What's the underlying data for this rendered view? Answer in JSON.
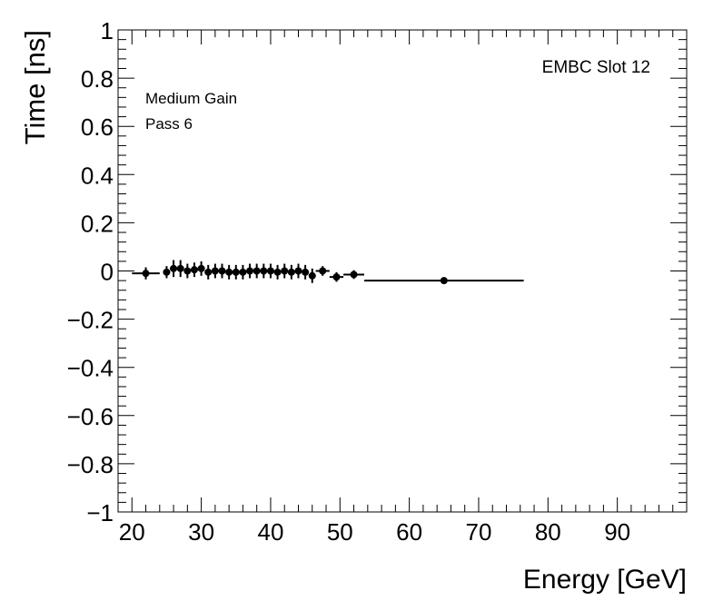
{
  "chart_data": {
    "type": "scatter",
    "title": "",
    "xlabel": "Energy [GeV]",
    "ylabel": "Time [ns]",
    "xlim": [
      18,
      100
    ],
    "ylim": [
      -1,
      1
    ],
    "x_ticks": [
      20,
      30,
      40,
      50,
      60,
      70,
      80,
      90
    ],
    "y_ticks": [
      -1,
      -0.8,
      -0.6,
      -0.4,
      -0.2,
      0,
      0.2,
      0.4,
      0.6,
      0.8,
      1
    ],
    "y_tick_labels": [
      "−1",
      "−0.8",
      "−0.6",
      "−0.4",
      "−0.2",
      "0",
      "0.2",
      "0.4",
      "0.6",
      "0.8",
      "1"
    ],
    "annotations": {
      "top_right": "EMBC Slot 12",
      "line1": "Medium Gain",
      "line2": "Pass 6"
    },
    "grid": false,
    "series": [
      {
        "points": [
          {
            "x": 22.0,
            "y": -0.01,
            "xerr": 2.0,
            "yerr": 0.025
          },
          {
            "x": 25.0,
            "y": -0.005,
            "xerr": 0.5,
            "yerr": 0.025
          },
          {
            "x": 26.0,
            "y": 0.01,
            "xerr": 0.5,
            "yerr": 0.035
          },
          {
            "x": 27.0,
            "y": 0.01,
            "xerr": 0.5,
            "yerr": 0.035
          },
          {
            "x": 28.0,
            "y": 0.0,
            "xerr": 0.5,
            "yerr": 0.03
          },
          {
            "x": 29.0,
            "y": 0.005,
            "xerr": 0.5,
            "yerr": 0.03
          },
          {
            "x": 30.0,
            "y": 0.01,
            "xerr": 0.5,
            "yerr": 0.03
          },
          {
            "x": 31.0,
            "y": -0.005,
            "xerr": 0.5,
            "yerr": 0.03
          },
          {
            "x": 32.0,
            "y": 0.0,
            "xerr": 0.5,
            "yerr": 0.03
          },
          {
            "x": 33.0,
            "y": 0.0,
            "xerr": 0.5,
            "yerr": 0.03
          },
          {
            "x": 34.0,
            "y": -0.005,
            "xerr": 0.5,
            "yerr": 0.03
          },
          {
            "x": 35.0,
            "y": -0.005,
            "xerr": 0.5,
            "yerr": 0.03
          },
          {
            "x": 36.0,
            "y": -0.005,
            "xerr": 0.5,
            "yerr": 0.03
          },
          {
            "x": 37.0,
            "y": 0.0,
            "xerr": 0.5,
            "yerr": 0.03
          },
          {
            "x": 38.0,
            "y": 0.0,
            "xerr": 0.5,
            "yerr": 0.03
          },
          {
            "x": 39.0,
            "y": 0.0,
            "xerr": 0.5,
            "yerr": 0.03
          },
          {
            "x": 40.0,
            "y": 0.0,
            "xerr": 0.5,
            "yerr": 0.03
          },
          {
            "x": 41.0,
            "y": -0.005,
            "xerr": 0.5,
            "yerr": 0.03
          },
          {
            "x": 42.0,
            "y": 0.0,
            "xerr": 0.5,
            "yerr": 0.03
          },
          {
            "x": 43.0,
            "y": -0.005,
            "xerr": 0.5,
            "yerr": 0.03
          },
          {
            "x": 44.0,
            "y": 0.0,
            "xerr": 0.5,
            "yerr": 0.03
          },
          {
            "x": 45.0,
            "y": -0.005,
            "xerr": 0.5,
            "yerr": 0.03
          },
          {
            "x": 46.0,
            "y": -0.02,
            "xerr": 0.5,
            "yerr": 0.03
          },
          {
            "x": 47.5,
            "y": 0.0,
            "xerr": 1.0,
            "yerr": 0.02
          },
          {
            "x": 49.5,
            "y": -0.025,
            "xerr": 1.0,
            "yerr": 0.02
          },
          {
            "x": 52.0,
            "y": -0.015,
            "xerr": 1.5,
            "yerr": 0.018
          },
          {
            "x": 65.0,
            "y": -0.04,
            "xerr": 11.5,
            "yerr": 0.008
          }
        ]
      }
    ]
  }
}
